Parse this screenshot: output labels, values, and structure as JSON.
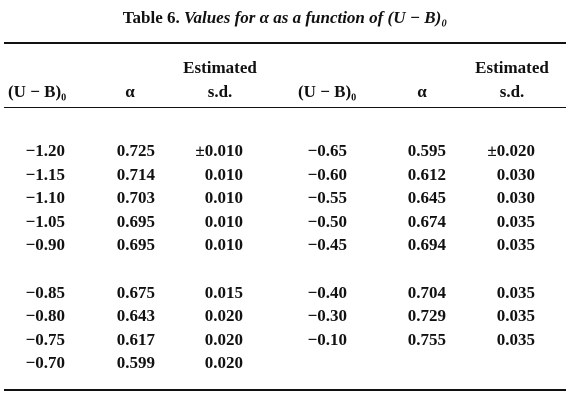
{
  "title": {
    "label": "Table 6.",
    "caption": "Values for α as a function of (U − B)₀"
  },
  "columns": [
    [
      "(U − B)₀"
    ],
    [
      "α"
    ],
    [
      "Estimated",
      "s.d."
    ],
    [
      "(U − B)₀"
    ],
    [
      "α"
    ],
    [
      "Estimated",
      "s.d."
    ]
  ],
  "groups": [
    [
      [
        "−1.20",
        "0.725",
        "±0.010",
        "−0.65",
        "0.595",
        "±0.020"
      ],
      [
        "−1.15",
        "0.714",
        "0.010",
        "−0.60",
        "0.612",
        "0.030"
      ],
      [
        "−1.10",
        "0.703",
        "0.010",
        "−0.55",
        "0.645",
        "0.030"
      ],
      [
        "−1.05",
        "0.695",
        "0.010",
        "−0.50",
        "0.674",
        "0.035"
      ],
      [
        "−0.90",
        "0.695",
        "0.010",
        "−0.45",
        "0.694",
        "0.035"
      ]
    ],
    [
      [
        "−0.85",
        "0.675",
        "0.015",
        "−0.40",
        "0.704",
        "0.035"
      ],
      [
        "−0.80",
        "0.643",
        "0.020",
        "−0.30",
        "0.729",
        "0.035"
      ],
      [
        "−0.75",
        "0.617",
        "0.020",
        "−0.10",
        "0.755",
        "0.035"
      ],
      [
        "−0.70",
        "0.599",
        "0.020"
      ]
    ]
  ]
}
